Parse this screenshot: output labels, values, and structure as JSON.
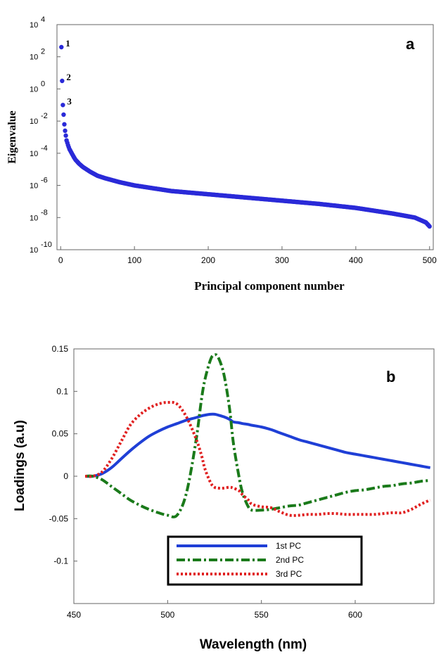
{
  "chart_data": [
    {
      "panel_label": "a",
      "type": "scatter",
      "xlabel": "Principal component number",
      "ylabel": "Eigenvalue",
      "yscale": "log",
      "xlim": [
        -5,
        505
      ],
      "ylim_exponent": [
        -10,
        4
      ],
      "xticks": [
        "0",
        "100",
        "200",
        "300",
        "400",
        "500"
      ],
      "yticks": [
        {
          "base": "10",
          "exp": "4"
        },
        {
          "base": "10",
          "exp": "2"
        },
        {
          "base": "10",
          "exp": "0"
        },
        {
          "base": "10",
          "exp": "-2"
        },
        {
          "base": "10",
          "exp": "-4"
        },
        {
          "base": "10",
          "exp": "-6"
        },
        {
          "base": "10",
          "exp": "-8"
        },
        {
          "base": "10",
          "exp": "-10"
        }
      ],
      "annotations": [
        {
          "text": "1",
          "x": 1
        },
        {
          "text": "2",
          "x": 2
        },
        {
          "text": "3",
          "x": 3
        }
      ],
      "point_color": "#2a2ad8",
      "points_log10": {
        "x": [
          1,
          2,
          3,
          4,
          5,
          6,
          7,
          8,
          10,
          12,
          15,
          18,
          20,
          25,
          30,
          40,
          50,
          60,
          80,
          100,
          150,
          200,
          250,
          300,
          350,
          400,
          450,
          480,
          495,
          500
        ],
        "y": [
          2.6,
          0.5,
          -1.0,
          -1.6,
          -2.2,
          -2.6,
          -2.9,
          -3.2,
          -3.5,
          -3.75,
          -4.0,
          -4.25,
          -4.4,
          -4.65,
          -4.85,
          -5.15,
          -5.4,
          -5.55,
          -5.8,
          -6.0,
          -6.35,
          -6.55,
          -6.75,
          -6.95,
          -7.15,
          -7.4,
          -7.75,
          -8.0,
          -8.3,
          -8.55
        ]
      }
    },
    {
      "panel_label": "b",
      "type": "line",
      "xlabel": "Wavelength (nm)",
      "ylabel": "Loadings (a.u)",
      "xlim": [
        450,
        642
      ],
      "ylim": [
        -0.15,
        0.15
      ],
      "xticks": [
        "450",
        "500",
        "550",
        "600"
      ],
      "yticks": [
        "0.15",
        "0.1",
        "0.05",
        "0",
        "-0.05",
        "-0.1"
      ],
      "x": [
        456,
        460,
        465,
        470,
        475,
        480,
        485,
        490,
        495,
        500,
        505,
        510,
        515,
        518,
        520,
        523,
        525,
        527,
        530,
        533,
        535,
        538,
        540,
        543,
        545,
        550,
        555,
        560,
        565,
        570,
        575,
        580,
        585,
        590,
        595,
        600,
        605,
        610,
        615,
        620,
        625,
        630,
        635,
        640
      ],
      "series": [
        {
          "name": "1st PC",
          "color": "#1f3fd6",
          "dash": "solid",
          "values": [
            0.0,
            0.0,
            0.003,
            0.01,
            0.02,
            0.03,
            0.039,
            0.047,
            0.053,
            0.058,
            0.062,
            0.066,
            0.069,
            0.071,
            0.072,
            0.073,
            0.073,
            0.072,
            0.07,
            0.067,
            0.064,
            0.063,
            0.062,
            0.061,
            0.06,
            0.058,
            0.055,
            0.051,
            0.047,
            0.043,
            0.04,
            0.037,
            0.034,
            0.031,
            0.028,
            0.026,
            0.024,
            0.022,
            0.02,
            0.018,
            0.016,
            0.014,
            0.012,
            0.01
          ]
        },
        {
          "name": "2nd PC",
          "color": "#1a7a1a",
          "dash": "dashdot",
          "values": [
            0.0,
            0.0,
            -0.004,
            -0.012,
            -0.02,
            -0.028,
            -0.034,
            -0.039,
            -0.043,
            -0.046,
            -0.046,
            -0.02,
            0.04,
            0.09,
            0.115,
            0.138,
            0.143,
            0.14,
            0.12,
            0.08,
            0.04,
            0.0,
            -0.02,
            -0.036,
            -0.04,
            -0.04,
            -0.039,
            -0.037,
            -0.035,
            -0.034,
            -0.031,
            -0.028,
            -0.025,
            -0.022,
            -0.019,
            -0.017,
            -0.016,
            -0.014,
            -0.012,
            -0.011,
            -0.009,
            -0.008,
            -0.006,
            -0.005
          ]
        },
        {
          "name": "3rd PC",
          "color": "#e02020",
          "dash": "dotted",
          "values": [
            0.0,
            0.0,
            0.005,
            0.02,
            0.04,
            0.06,
            0.072,
            0.08,
            0.085,
            0.087,
            0.085,
            0.07,
            0.045,
            0.025,
            0.008,
            -0.008,
            -0.013,
            -0.014,
            -0.014,
            -0.013,
            -0.014,
            -0.017,
            -0.022,
            -0.028,
            -0.033,
            -0.036,
            -0.037,
            -0.042,
            -0.046,
            -0.046,
            -0.045,
            -0.045,
            -0.044,
            -0.044,
            -0.045,
            -0.045,
            -0.045,
            -0.045,
            -0.044,
            -0.043,
            -0.043,
            -0.039,
            -0.033,
            -0.028
          ]
        }
      ],
      "legend": {
        "position": "bottom-center"
      }
    }
  ]
}
